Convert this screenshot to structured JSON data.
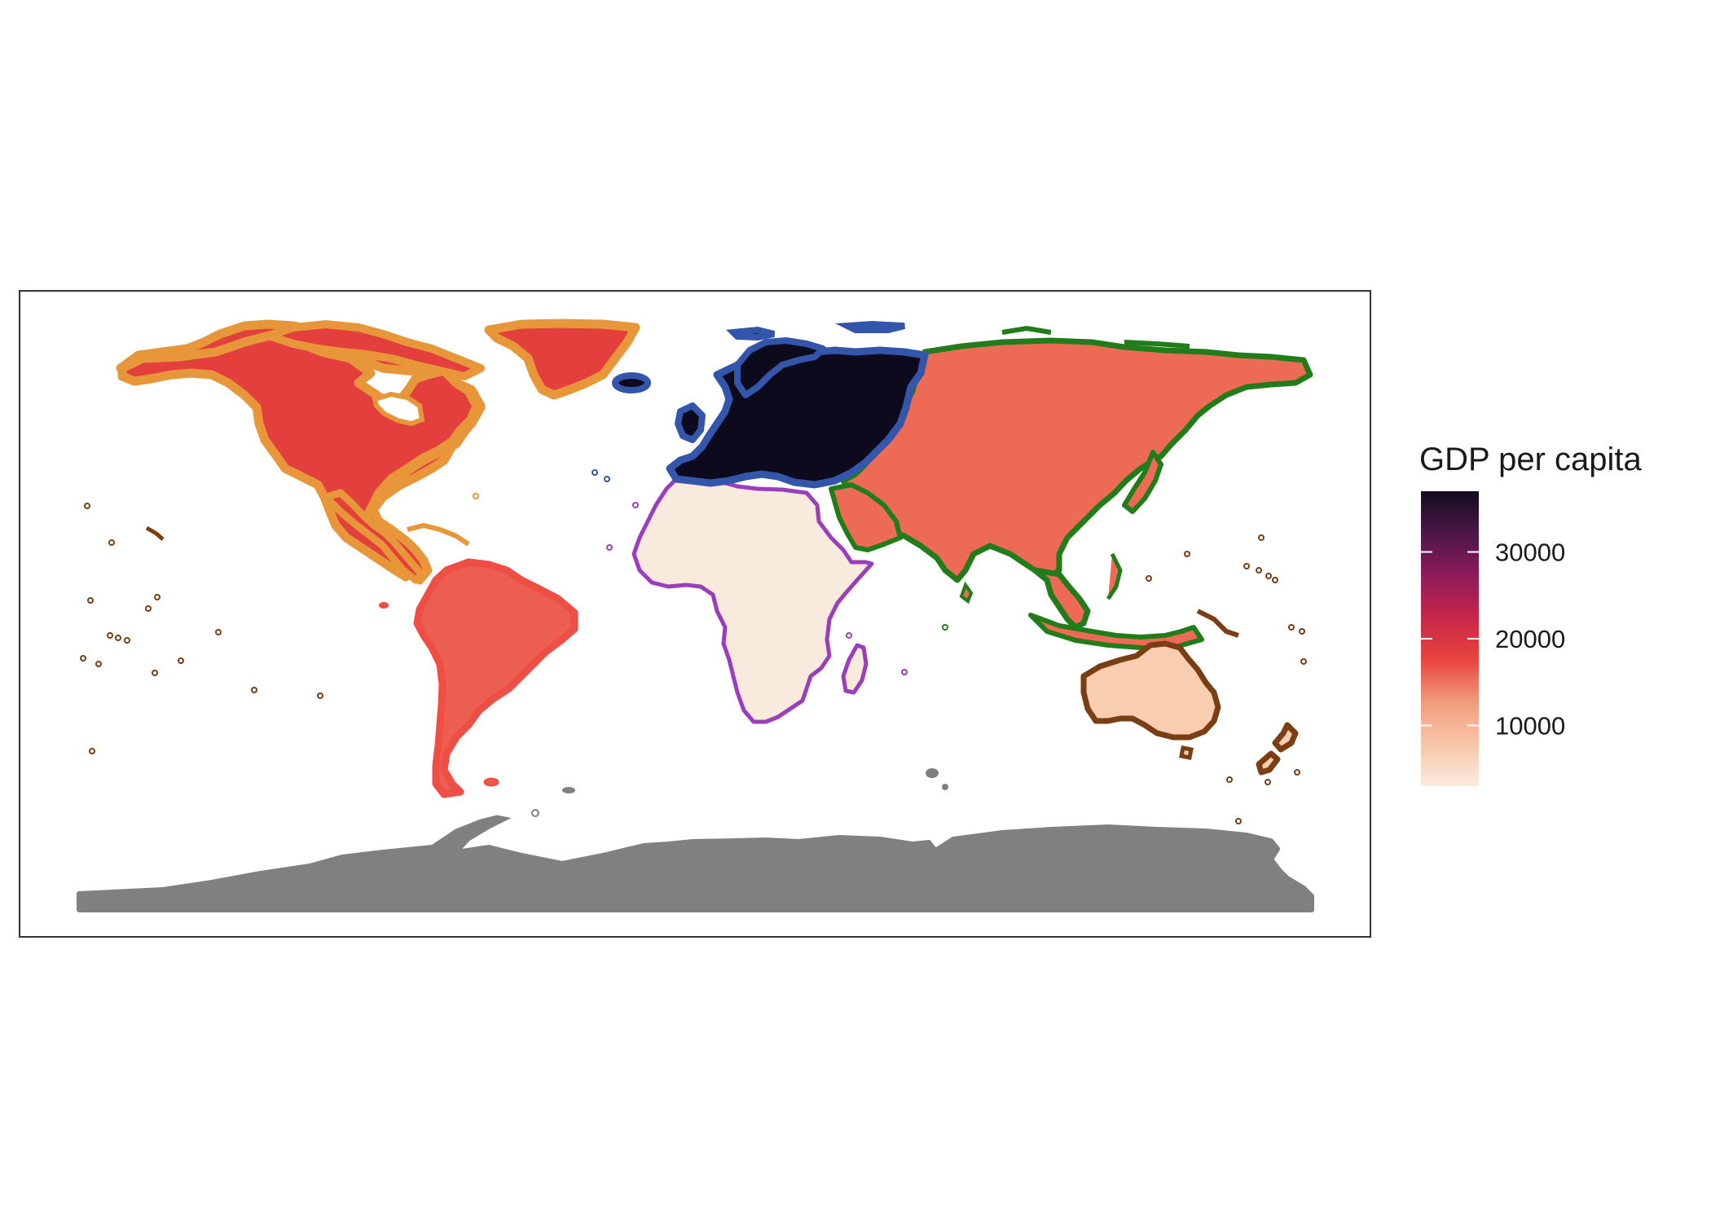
{
  "legend": {
    "title": "GDP per capita",
    "ticks": [
      {
        "value": 10000,
        "label": "10000"
      },
      {
        "value": 20000,
        "label": "20000"
      },
      {
        "value": 30000,
        "label": "30000"
      }
    ],
    "range": [
      3000,
      37000
    ],
    "gradient": [
      "#faeadf",
      "#f7c6a7",
      "#f19c7c",
      "#e8453c",
      "#c7264a",
      "#8e1b5a",
      "#4b1748",
      "#140c1c"
    ]
  },
  "regions": [
    {
      "name": "Europe",
      "gdp_per_capita": 37000,
      "fill": "#0c0a1c",
      "stroke": "#3355aa"
    },
    {
      "name": "North America",
      "gdp_per_capita": 22000,
      "fill": "#e3403d",
      "stroke": "#e8963a"
    },
    {
      "name": "Asia",
      "gdp_per_capita": 13000,
      "fill": "#ed6b55",
      "stroke": "#207d1a"
    },
    {
      "name": "South America",
      "gdp_per_capita": 14000,
      "fill": "#ec5f50",
      "stroke": "#ef4e44"
    },
    {
      "name": "Oceania",
      "gdp_per_capita": 5500,
      "fill": "#f9cdb0",
      "stroke": "#7a3e14"
    },
    {
      "name": "Africa",
      "gdp_per_capita": 3000,
      "fill": "#f9eade",
      "stroke": "#9b3ebb"
    },
    {
      "name": "Antarctica",
      "gdp_per_capita": null,
      "fill": "#808080",
      "stroke": "#808080"
    }
  ],
  "colors": {
    "panel_border": "#333333",
    "background": "#ffffff",
    "na_fill": "#808080"
  }
}
